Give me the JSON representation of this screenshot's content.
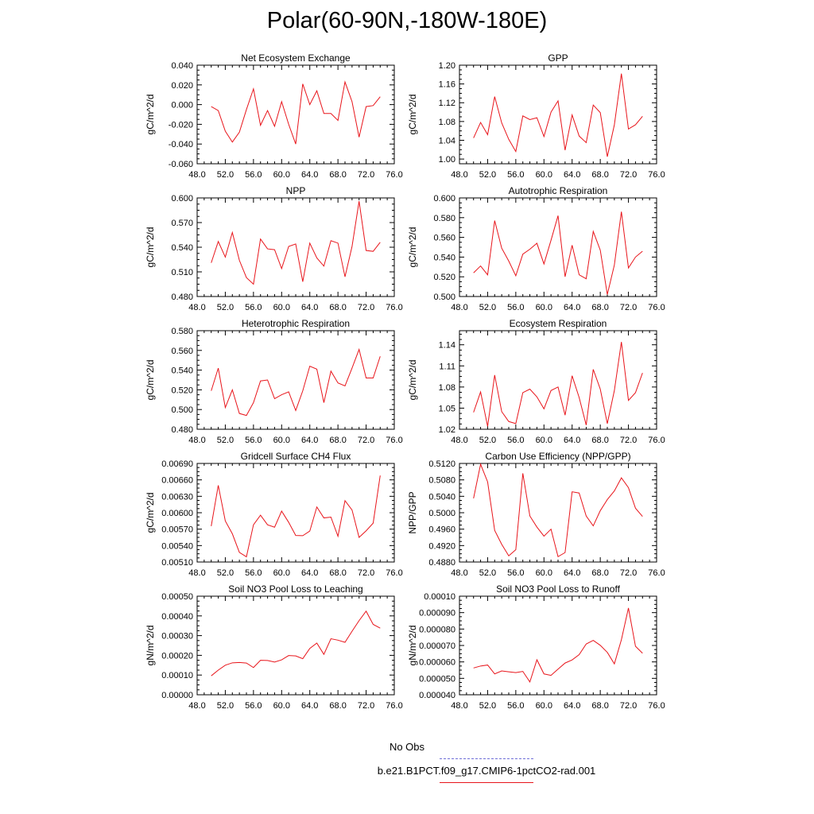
{
  "title": "Polar(60-90N,-180W-180E)",
  "colors": {
    "model": "#e8151b",
    "obs": "#6f6fd8",
    "axis": "#000000"
  },
  "legend": {
    "obs_label": "No Obs",
    "model_label": "b.e21.B1PCT.f09_g17.CMIP6-1pctCO2-rad.001"
  },
  "chart_data": [
    {
      "type": "line",
      "title": "Net Ecosystem Exchange",
      "ylabel": "gC/m^2/d",
      "xlim": [
        48,
        76
      ],
      "ylim": [
        -0.06,
        0.04
      ],
      "xticks": [
        "48.0",
        "52.0",
        "56.0",
        "60.0",
        "64.0",
        "68.0",
        "72.0",
        "76.0"
      ],
      "yticks": [
        "-0.060",
        "-0.040",
        "-0.020",
        "0.000",
        "0.020",
        "0.040"
      ],
      "series": [
        {
          "x": [
            50,
            51,
            52,
            53,
            54,
            55,
            56,
            57,
            58,
            59,
            60,
            61,
            62,
            63,
            64,
            65,
            66,
            67,
            68,
            69,
            70,
            71,
            72,
            73,
            74
          ],
          "values": [
            -0.002,
            -0.006,
            -0.027,
            -0.038,
            -0.028,
            -0.005,
            0.016,
            -0.021,
            -0.006,
            -0.022,
            0.003,
            -0.02,
            -0.04,
            0.021,
            0.0,
            0.014,
            -0.009,
            -0.009,
            -0.016,
            0.023,
            0.003,
            -0.033,
            -0.002,
            -0.001,
            0.008
          ]
        }
      ]
    },
    {
      "type": "line",
      "title": "GPP",
      "ylabel": "gC/m^2/d",
      "xlim": [
        48,
        76
      ],
      "ylim": [
        0.99,
        1.2
      ],
      "xticks": [
        "48.0",
        "52.0",
        "56.0",
        "60.0",
        "64.0",
        "68.0",
        "72.0",
        "76.0"
      ],
      "yticks": [
        "1.00",
        "1.04",
        "1.08",
        "1.12",
        "1.16",
        "1.20"
      ],
      "series": [
        {
          "x": [
            50,
            51,
            52,
            53,
            54,
            55,
            56,
            57,
            58,
            59,
            60,
            61,
            62,
            63,
            64,
            65,
            66,
            67,
            68,
            69,
            70,
            71,
            72,
            73,
            74
          ],
          "values": [
            1.045,
            1.078,
            1.052,
            1.133,
            1.077,
            1.042,
            1.016,
            1.092,
            1.084,
            1.088,
            1.048,
            1.1,
            1.124,
            1.019,
            1.094,
            1.049,
            1.035,
            1.115,
            1.099,
            1.005,
            1.073,
            1.182,
            1.064,
            1.073,
            1.091
          ]
        }
      ]
    },
    {
      "type": "line",
      "title": "NPP",
      "ylabel": "gC/m^2/d",
      "xlim": [
        48,
        76
      ],
      "ylim": [
        0.48,
        0.6
      ],
      "xticks": [
        "48.0",
        "52.0",
        "56.0",
        "60.0",
        "64.0",
        "68.0",
        "72.0",
        "76.0"
      ],
      "yticks": [
        "0.480",
        "0.510",
        "0.540",
        "0.570",
        "0.600"
      ],
      "series": [
        {
          "x": [
            50,
            51,
            52,
            53,
            54,
            55,
            56,
            57,
            58,
            59,
            60,
            61,
            62,
            63,
            64,
            65,
            66,
            67,
            68,
            69,
            70,
            71,
            72,
            73,
            74
          ],
          "values": [
            0.521,
            0.547,
            0.528,
            0.558,
            0.524,
            0.503,
            0.495,
            0.55,
            0.538,
            0.537,
            0.514,
            0.541,
            0.544,
            0.498,
            0.545,
            0.527,
            0.517,
            0.548,
            0.545,
            0.504,
            0.541,
            0.596,
            0.536,
            0.535,
            0.546
          ]
        }
      ]
    },
    {
      "type": "line",
      "title": "Autotrophic Respiration",
      "ylabel": "gC/m^2/d",
      "xlim": [
        48,
        76
      ],
      "ylim": [
        0.5,
        0.6
      ],
      "xticks": [
        "48.0",
        "52.0",
        "56.0",
        "60.0",
        "64.0",
        "68.0",
        "72.0",
        "76.0"
      ],
      "yticks": [
        "0.500",
        "0.520",
        "0.540",
        "0.560",
        "0.580",
        "0.600"
      ],
      "series": [
        {
          "x": [
            50,
            51,
            52,
            53,
            54,
            55,
            56,
            57,
            58,
            59,
            60,
            61,
            62,
            63,
            64,
            65,
            66,
            67,
            68,
            69,
            70,
            71,
            72,
            73,
            74
          ],
          "values": [
            0.524,
            0.531,
            0.522,
            0.577,
            0.549,
            0.536,
            0.521,
            0.543,
            0.548,
            0.554,
            0.533,
            0.557,
            0.582,
            0.52,
            0.552,
            0.522,
            0.518,
            0.566,
            0.547,
            0.502,
            0.532,
            0.586,
            0.529,
            0.54,
            0.546
          ]
        }
      ]
    },
    {
      "type": "line",
      "title": "Heterotrophic Respiration",
      "ylabel": "gC/m^2/d",
      "xlim": [
        48,
        76
      ],
      "ylim": [
        0.48,
        0.58
      ],
      "xticks": [
        "48.0",
        "52.0",
        "56.0",
        "60.0",
        "64.0",
        "68.0",
        "72.0",
        "76.0"
      ],
      "yticks": [
        "0.480",
        "0.500",
        "0.520",
        "0.540",
        "0.560",
        "0.580"
      ],
      "series": [
        {
          "x": [
            50,
            51,
            52,
            53,
            54,
            55,
            56,
            57,
            58,
            59,
            60,
            61,
            62,
            63,
            64,
            65,
            66,
            67,
            68,
            69,
            70,
            71,
            72,
            73,
            74
          ],
          "values": [
            0.519,
            0.542,
            0.502,
            0.52,
            0.496,
            0.494,
            0.507,
            0.529,
            0.53,
            0.511,
            0.515,
            0.518,
            0.499,
            0.519,
            0.544,
            0.541,
            0.507,
            0.539,
            0.527,
            0.524,
            0.542,
            0.561,
            0.532,
            0.532,
            0.554
          ]
        }
      ]
    },
    {
      "type": "line",
      "title": "Ecosystem Respiration",
      "ylabel": "gC/m^2/d",
      "xlim": [
        48,
        76
      ],
      "ylim": [
        1.02,
        1.16
      ],
      "xticks": [
        "48.0",
        "52.0",
        "56.0",
        "60.0",
        "64.0",
        "68.0",
        "72.0",
        "76.0"
      ],
      "yticks": [
        "1.02",
        "1.05",
        "1.08",
        "1.11",
        "1.14"
      ],
      "series": [
        {
          "x": [
            50,
            51,
            52,
            53,
            54,
            55,
            56,
            57,
            58,
            59,
            60,
            61,
            62,
            63,
            64,
            65,
            66,
            67,
            68,
            69,
            70,
            71,
            72,
            73,
            74
          ],
          "values": [
            1.044,
            1.073,
            1.024,
            1.097,
            1.045,
            1.031,
            1.028,
            1.072,
            1.077,
            1.066,
            1.049,
            1.075,
            1.08,
            1.04,
            1.096,
            1.065,
            1.026,
            1.105,
            1.077,
            1.028,
            1.075,
            1.144,
            1.061,
            1.072,
            1.1
          ]
        }
      ]
    },
    {
      "type": "line",
      "title": "Gridcell Surface CH4 Flux",
      "ylabel": "gC/m^2/d",
      "xlim": [
        48,
        76
      ],
      "ylim": [
        0.0051,
        0.0069
      ],
      "xticks": [
        "48.0",
        "52.0",
        "56.0",
        "60.0",
        "64.0",
        "68.0",
        "72.0",
        "76.0"
      ],
      "yticks": [
        "0.00510",
        "0.00540",
        "0.00570",
        "0.00600",
        "0.00630",
        "0.00660",
        "0.00690"
      ],
      "series": [
        {
          "x": [
            50,
            51,
            52,
            53,
            54,
            55,
            56,
            57,
            58,
            59,
            60,
            61,
            62,
            63,
            64,
            65,
            66,
            67,
            68,
            69,
            70,
            71,
            72,
            73,
            74
          ],
          "values": [
            0.005755,
            0.0065,
            0.00585,
            0.005615,
            0.005275,
            0.005195,
            0.00578,
            0.005955,
            0.00578,
            0.005735,
            0.00603,
            0.005825,
            0.005585,
            0.00558,
            0.005665,
            0.006105,
            0.005905,
            0.00592,
            0.00557,
            0.00622,
            0.00605,
            0.00555,
            0.00567,
            0.00581,
            0.00668
          ]
        }
      ]
    },
    {
      "type": "line",
      "title": "Carbon Use Efficiency (NPP/GPP)",
      "ylabel": "NPP/GPP",
      "xlim": [
        48,
        76
      ],
      "ylim": [
        0.488,
        0.512
      ],
      "xticks": [
        "48.0",
        "52.0",
        "56.0",
        "60.0",
        "64.0",
        "68.0",
        "72.0",
        "76.0"
      ],
      "yticks": [
        "0.4880",
        "0.4920",
        "0.4960",
        "0.5000",
        "0.5040",
        "0.5080",
        "0.5120"
      ],
      "series": [
        {
          "x": [
            50,
            51,
            52,
            53,
            54,
            55,
            56,
            57,
            58,
            59,
            60,
            61,
            62,
            63,
            64,
            65,
            66,
            67,
            68,
            69,
            70,
            71,
            72,
            73,
            74
          ],
          "values": [
            0.5035,
            0.5118,
            0.5075,
            0.4957,
            0.4923,
            0.4895,
            0.491,
            0.5096,
            0.4992,
            0.4965,
            0.4943,
            0.496,
            0.4893,
            0.4903,
            0.5051,
            0.5048,
            0.4992,
            0.4968,
            0.5005,
            0.5032,
            0.5053,
            0.5085,
            0.5061,
            0.5011,
            0.4991
          ]
        }
      ]
    },
    {
      "type": "line",
      "title": "Soil NO3 Pool Loss to Leaching",
      "ylabel": "gN/m^2/d",
      "xlim": [
        48,
        76
      ],
      "ylim": [
        0.0,
        0.0005
      ],
      "xticks": [
        "48.0",
        "52.0",
        "56.0",
        "60.0",
        "64.0",
        "68.0",
        "72.0",
        "76.0"
      ],
      "yticks": [
        "0.00000",
        "0.00010",
        "0.00020",
        "0.00030",
        "0.00040",
        "0.00050"
      ],
      "series": [
        {
          "x": [
            50,
            51,
            52,
            53,
            54,
            55,
            56,
            57,
            58,
            59,
            60,
            61,
            62,
            63,
            64,
            65,
            66,
            67,
            68,
            69,
            70,
            71,
            72,
            73,
            74
          ],
          "values": [
            9.6e-05,
            0.000125,
            0.00015,
            0.000162,
            0.000164,
            0.000161,
            0.000138,
            0.000175,
            0.000174,
            0.000166,
            0.000177,
            0.000199,
            0.000197,
            0.000183,
            0.000235,
            0.000262,
            0.000205,
            0.000284,
            0.000277,
            0.000266,
            0.000322,
            0.000376,
            0.000424,
            0.000357,
            0.000338
          ]
        }
      ]
    },
    {
      "type": "line",
      "title": "Soil NO3 Pool Loss to Runoff",
      "ylabel": "gN/m^2/d",
      "xlim": [
        48,
        76
      ],
      "ylim": [
        4e-05,
        0.0001
      ],
      "xticks": [
        "48.0",
        "52.0",
        "56.0",
        "60.0",
        "64.0",
        "68.0",
        "72.0",
        "76.0"
      ],
      "yticks": [
        "0.000040",
        "0.000050",
        "0.000060",
        "0.000070",
        "0.000080",
        "0.000090",
        "0.00010"
      ],
      "series": [
        {
          "x": [
            50,
            51,
            52,
            53,
            54,
            55,
            56,
            57,
            58,
            59,
            60,
            61,
            62,
            63,
            64,
            65,
            66,
            67,
            68,
            69,
            70,
            71,
            72,
            73,
            74
          ],
          "values": [
            5.63e-05,
            5.75e-05,
            5.81e-05,
            5.27e-05,
            5.45e-05,
            5.4e-05,
            5.35e-05,
            5.42e-05,
            4.78e-05,
            6.13e-05,
            5.27e-05,
            5.18e-05,
            5.56e-05,
            5.93e-05,
            6.12e-05,
            6.44e-05,
            7.09e-05,
            7.31e-05,
            7.01e-05,
            6.58e-05,
            5.88e-05,
            7.35e-05,
            9.28e-05,
            6.95e-05,
            6.53e-05
          ]
        }
      ]
    }
  ]
}
